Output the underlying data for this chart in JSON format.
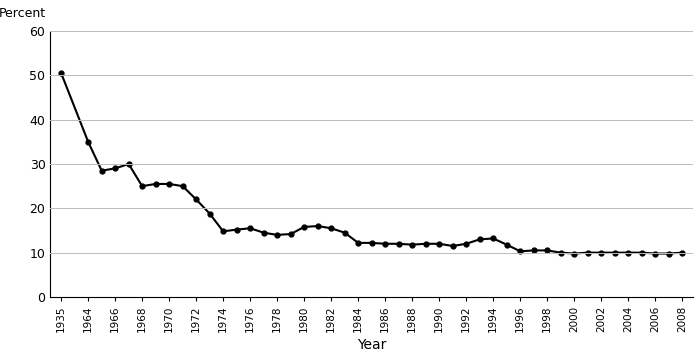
{
  "years": [
    1935,
    1964,
    1965,
    1966,
    1967,
    1968,
    1969,
    1970,
    1971,
    1972,
    1973,
    1974,
    1975,
    1976,
    1977,
    1978,
    1979,
    1980,
    1981,
    1982,
    1983,
    1984,
    1985,
    1986,
    1987,
    1988,
    1989,
    1990,
    1991,
    1992,
    1993,
    1994,
    1995,
    1996,
    1997,
    1998,
    1999,
    2000,
    2001,
    2002,
    2003,
    2004,
    2005,
    2006,
    2007,
    2008
  ],
  "values": [
    50.5,
    35.0,
    28.5,
    29.0,
    30.0,
    25.0,
    25.5,
    25.5,
    25.0,
    22.0,
    18.8,
    14.8,
    15.2,
    15.5,
    14.5,
    14.0,
    14.2,
    15.8,
    16.0,
    15.5,
    14.5,
    12.2,
    12.2,
    12.0,
    12.0,
    11.8,
    12.0,
    12.0,
    11.5,
    12.0,
    13.0,
    13.2,
    11.8,
    10.3,
    10.5,
    10.5,
    10.0,
    9.8,
    10.0,
    10.0,
    10.0,
    10.0,
    10.0,
    9.8,
    9.8,
    10.0
  ],
  "xlabel": "Year",
  "ylabel": "Percent",
  "xlim": [
    1933,
    2010
  ],
  "ylim": [
    0,
    60
  ],
  "yticks": [
    0,
    10,
    20,
    30,
    40,
    50,
    60
  ],
  "xticks": [
    1935,
    1964,
    1966,
    1968,
    1970,
    1972,
    1974,
    1976,
    1978,
    1980,
    1982,
    1984,
    1986,
    1988,
    1990,
    1992,
    1994,
    1996,
    1998,
    2000,
    2002,
    2004,
    2006,
    2008
  ],
  "xtick_labels": [
    "1935",
    "1964",
    "1966",
    "1968",
    "1970",
    "1972",
    "1974",
    "1976",
    "1978",
    "1980",
    "1982",
    "1984",
    "1986",
    "1988",
    "1990",
    "1992",
    "1994",
    "1996",
    "1998",
    "2000",
    "2002",
    "2004",
    "2006",
    "2008"
  ],
  "line_color": "#000000",
  "marker": "o",
  "marker_size": 3.5,
  "line_width": 1.5,
  "bg_color": "#ffffff",
  "grid_color": "#bbbbbb",
  "title": ""
}
